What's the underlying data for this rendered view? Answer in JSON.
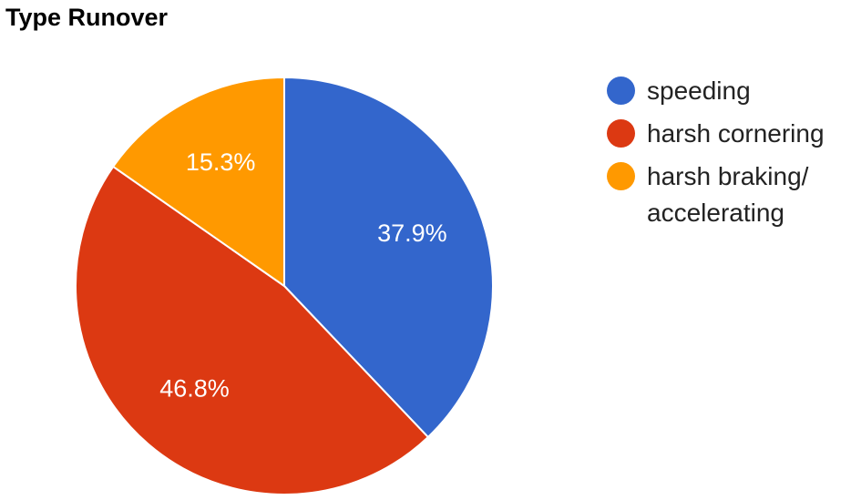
{
  "chart_data": {
    "type": "pie",
    "title": "Type Runover",
    "categories": [
      "speeding",
      "harsh cornering",
      "harsh braking/ accelerating"
    ],
    "values": [
      37.9,
      46.8,
      15.3
    ],
    "value_labels": [
      "37.9%",
      "46.8%",
      "15.3%"
    ],
    "colors": [
      "#3366cc",
      "#dc3912",
      "#ff9900"
    ],
    "legend": "right"
  }
}
